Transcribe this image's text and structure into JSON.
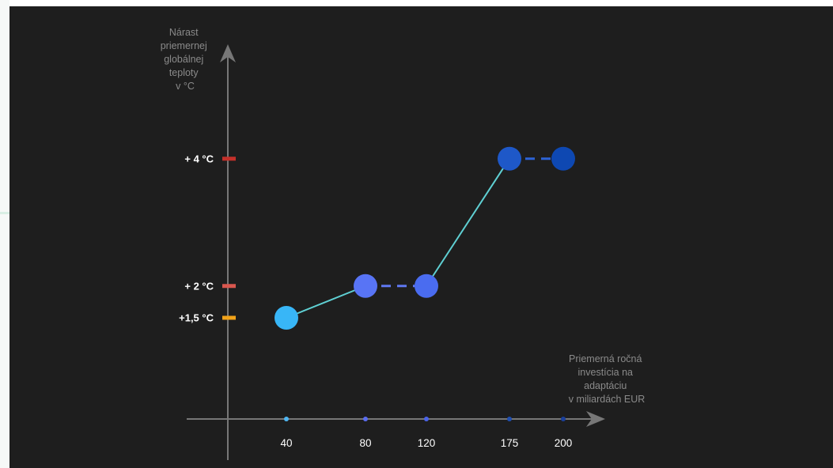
{
  "chart_data": {
    "type": "line",
    "ylabel_lines": [
      "Nárast",
      "priemernej",
      "globálnej",
      "teploty",
      "v °C"
    ],
    "xlabel_lines": [
      "Priemerná ročná",
      "investícia na",
      "adaptáciu",
      "v miliardách EUR"
    ],
    "x_ticks": [
      {
        "value": 40,
        "label": "40",
        "color": "#4fb6f2"
      },
      {
        "value": 80,
        "label": "80",
        "color": "#5a6cf0"
      },
      {
        "value": 120,
        "label": "120",
        "color": "#4a63e8"
      },
      {
        "value": 175,
        "label": "175",
        "color": "#1f4fb0"
      },
      {
        "value": 200,
        "label": "200",
        "color": "#1a3f9a"
      }
    ],
    "y_ticks": [
      {
        "value": 1.5,
        "label": "+1,5 °C",
        "color": "#f2a319"
      },
      {
        "value": 2,
        "label": "+ 2 °C",
        "color": "#d9574e"
      },
      {
        "value": 4,
        "label": "+ 4 °C",
        "color": "#c4302a"
      }
    ],
    "points": [
      {
        "x": 40,
        "y": 1.5,
        "color": "#38b6f7"
      },
      {
        "x": 80,
        "y": 2,
        "color": "#5874f5"
      },
      {
        "x": 120,
        "y": 2,
        "color": "#4a6cf0"
      },
      {
        "x": 175,
        "y": 4,
        "color": "#1e58c8"
      },
      {
        "x": 200,
        "y": 4,
        "color": "#0e48b2"
      }
    ],
    "segments": [
      {
        "from": 0,
        "to": 1,
        "style": "solid",
        "color": "#5fd0d3"
      },
      {
        "from": 1,
        "to": 2,
        "style": "dashed",
        "color": "#5f78f2"
      },
      {
        "from": 2,
        "to": 3,
        "style": "solid",
        "color": "#5fd0d3"
      },
      {
        "from": 3,
        "to": 4,
        "style": "dashed",
        "color": "#2d63d6"
      }
    ],
    "colors": {
      "background": "#1e1e1e",
      "axis": "#777777"
    }
  }
}
